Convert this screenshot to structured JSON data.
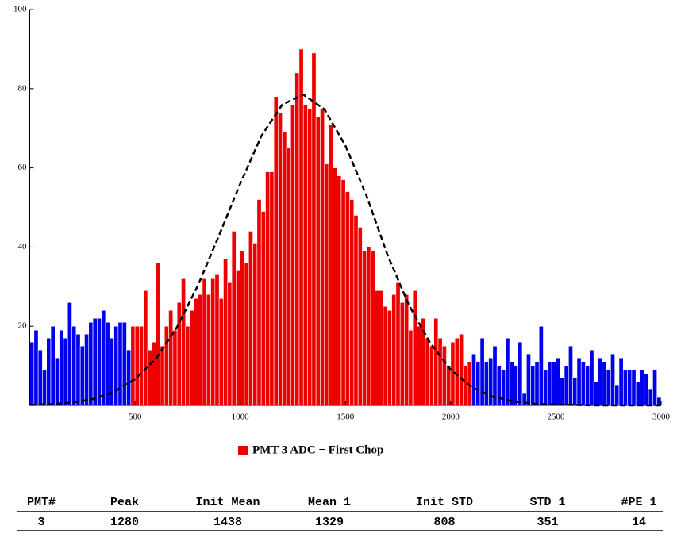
{
  "chart_data": {
    "type": "histogram",
    "xlim": [
      0,
      3000
    ],
    "ylim": [
      0,
      100
    ],
    "xticks": [
      500,
      1000,
      1500,
      2000,
      2500,
      3000
    ],
    "yticks": [
      20,
      40,
      60,
      80,
      100
    ],
    "series": [
      {
        "color": "#0000ee",
        "bins": [
          0,
          20,
          40,
          60,
          80,
          100,
          120,
          140,
          160,
          180,
          200,
          220,
          240,
          260,
          280,
          300,
          320,
          340,
          360,
          380,
          400,
          420,
          440,
          460,
          480
        ],
        "values": [
          16,
          19,
          14,
          9,
          17,
          20,
          12,
          19,
          17,
          26,
          20,
          18,
          15,
          18,
          21,
          22,
          22,
          24,
          21,
          17,
          20,
          21,
          21,
          14
        ]
      },
      {
        "name": "PMT 3 ADC − First Chop",
        "color": "#ee0000",
        "bins": [
          480,
          500,
          520,
          540,
          560,
          580,
          600,
          620,
          640,
          660,
          680,
          700,
          720,
          740,
          760,
          780,
          800,
          820,
          840,
          860,
          880,
          900,
          920,
          940,
          960,
          980,
          1000,
          1020,
          1040,
          1060,
          1080,
          1100,
          1120,
          1140,
          1160,
          1180,
          1200,
          1220,
          1240,
          1260,
          1280,
          1300,
          1320,
          1340,
          1360,
          1380,
          1400,
          1420,
          1440,
          1460,
          1480,
          1500,
          1520,
          1540,
          1560,
          1580,
          1600,
          1620,
          1640,
          1660,
          1680,
          1700,
          1720,
          1740,
          1760,
          1780,
          1800,
          1820,
          1840,
          1860,
          1880,
          1900,
          1920,
          1940,
          1960,
          1980,
          2000,
          2020,
          2040,
          2060,
          2080,
          2100
        ],
        "values": [
          20,
          20,
          20,
          29,
          14,
          16,
          36,
          15,
          20,
          24,
          19,
          26,
          32,
          20,
          24,
          27,
          28,
          32,
          28,
          32,
          33,
          27,
          37,
          31,
          44,
          34,
          39,
          36,
          44,
          41,
          52,
          49,
          59,
          59,
          78,
          74,
          69,
          65,
          76,
          84,
          90,
          76,
          75,
          89,
          73,
          75,
          61,
          71,
          60,
          58,
          57,
          54,
          52,
          48,
          45,
          39,
          40,
          39,
          29,
          29,
          25,
          24,
          28,
          31,
          26,
          28,
          19,
          29,
          20,
          22,
          17,
          15,
          22,
          17,
          15,
          10,
          16,
          17,
          18,
          10,
          11
        ]
      },
      {
        "color": "#0000ee",
        "bins": [
          2100,
          2120,
          2140,
          2160,
          2180,
          2200,
          2220,
          2240,
          2260,
          2280,
          2300,
          2320,
          2340,
          2360,
          2380,
          2400,
          2420,
          2440,
          2460,
          2480,
          2500,
          2520,
          2540,
          2560,
          2580,
          2600,
          2620,
          2640,
          2660,
          2680,
          2700,
          2720,
          2740,
          2760,
          2780,
          2800,
          2820,
          2840,
          2860,
          2880,
          2900,
          2920,
          2940,
          2960,
          2980,
          3000
        ],
        "values": [
          13,
          11,
          17,
          11,
          12,
          15,
          10,
          9,
          17,
          11,
          10,
          16,
          3,
          13,
          10,
          11,
          20,
          9,
          11,
          11,
          12,
          7,
          10,
          15,
          7,
          12,
          11,
          10,
          14,
          6,
          12,
          11,
          9,
          13,
          5,
          12,
          9,
          9,
          9,
          6,
          9,
          8,
          4,
          9,
          2
        ]
      },
      {
        "type": "line",
        "color": "#000000",
        "dashed": true,
        "x": [
          0,
          100,
          200,
          300,
          400,
          500,
          600,
          700,
          800,
          900,
          1000,
          1100,
          1200,
          1300,
          1400,
          1500,
          1600,
          1700,
          1800,
          1900,
          2000,
          2100,
          2200,
          2300,
          2400,
          2500,
          2600,
          2700,
          2800,
          2900,
          3000
        ],
        "values": [
          0.1,
          0.3,
          0.7,
          1.6,
          3.4,
          6.6,
          11.8,
          19.8,
          30.4,
          43.0,
          56.0,
          68.0,
          76.0,
          78.5,
          74.8,
          65.6,
          53.0,
          38.0,
          25.5,
          16.0,
          9.0,
          4.6,
          2.2,
          1.0,
          0.4,
          0.2,
          0.1,
          0,
          0,
          0,
          0
        ]
      }
    ]
  },
  "table": {
    "headers": [
      "PMT#",
      "Peak",
      "Init Mean",
      "Mean 1",
      "Init STD",
      "STD 1",
      "#PE 1"
    ],
    "rows": [
      [
        "3",
        "1280",
        "1438",
        "1329",
        "808",
        "351",
        "14"
      ]
    ]
  }
}
